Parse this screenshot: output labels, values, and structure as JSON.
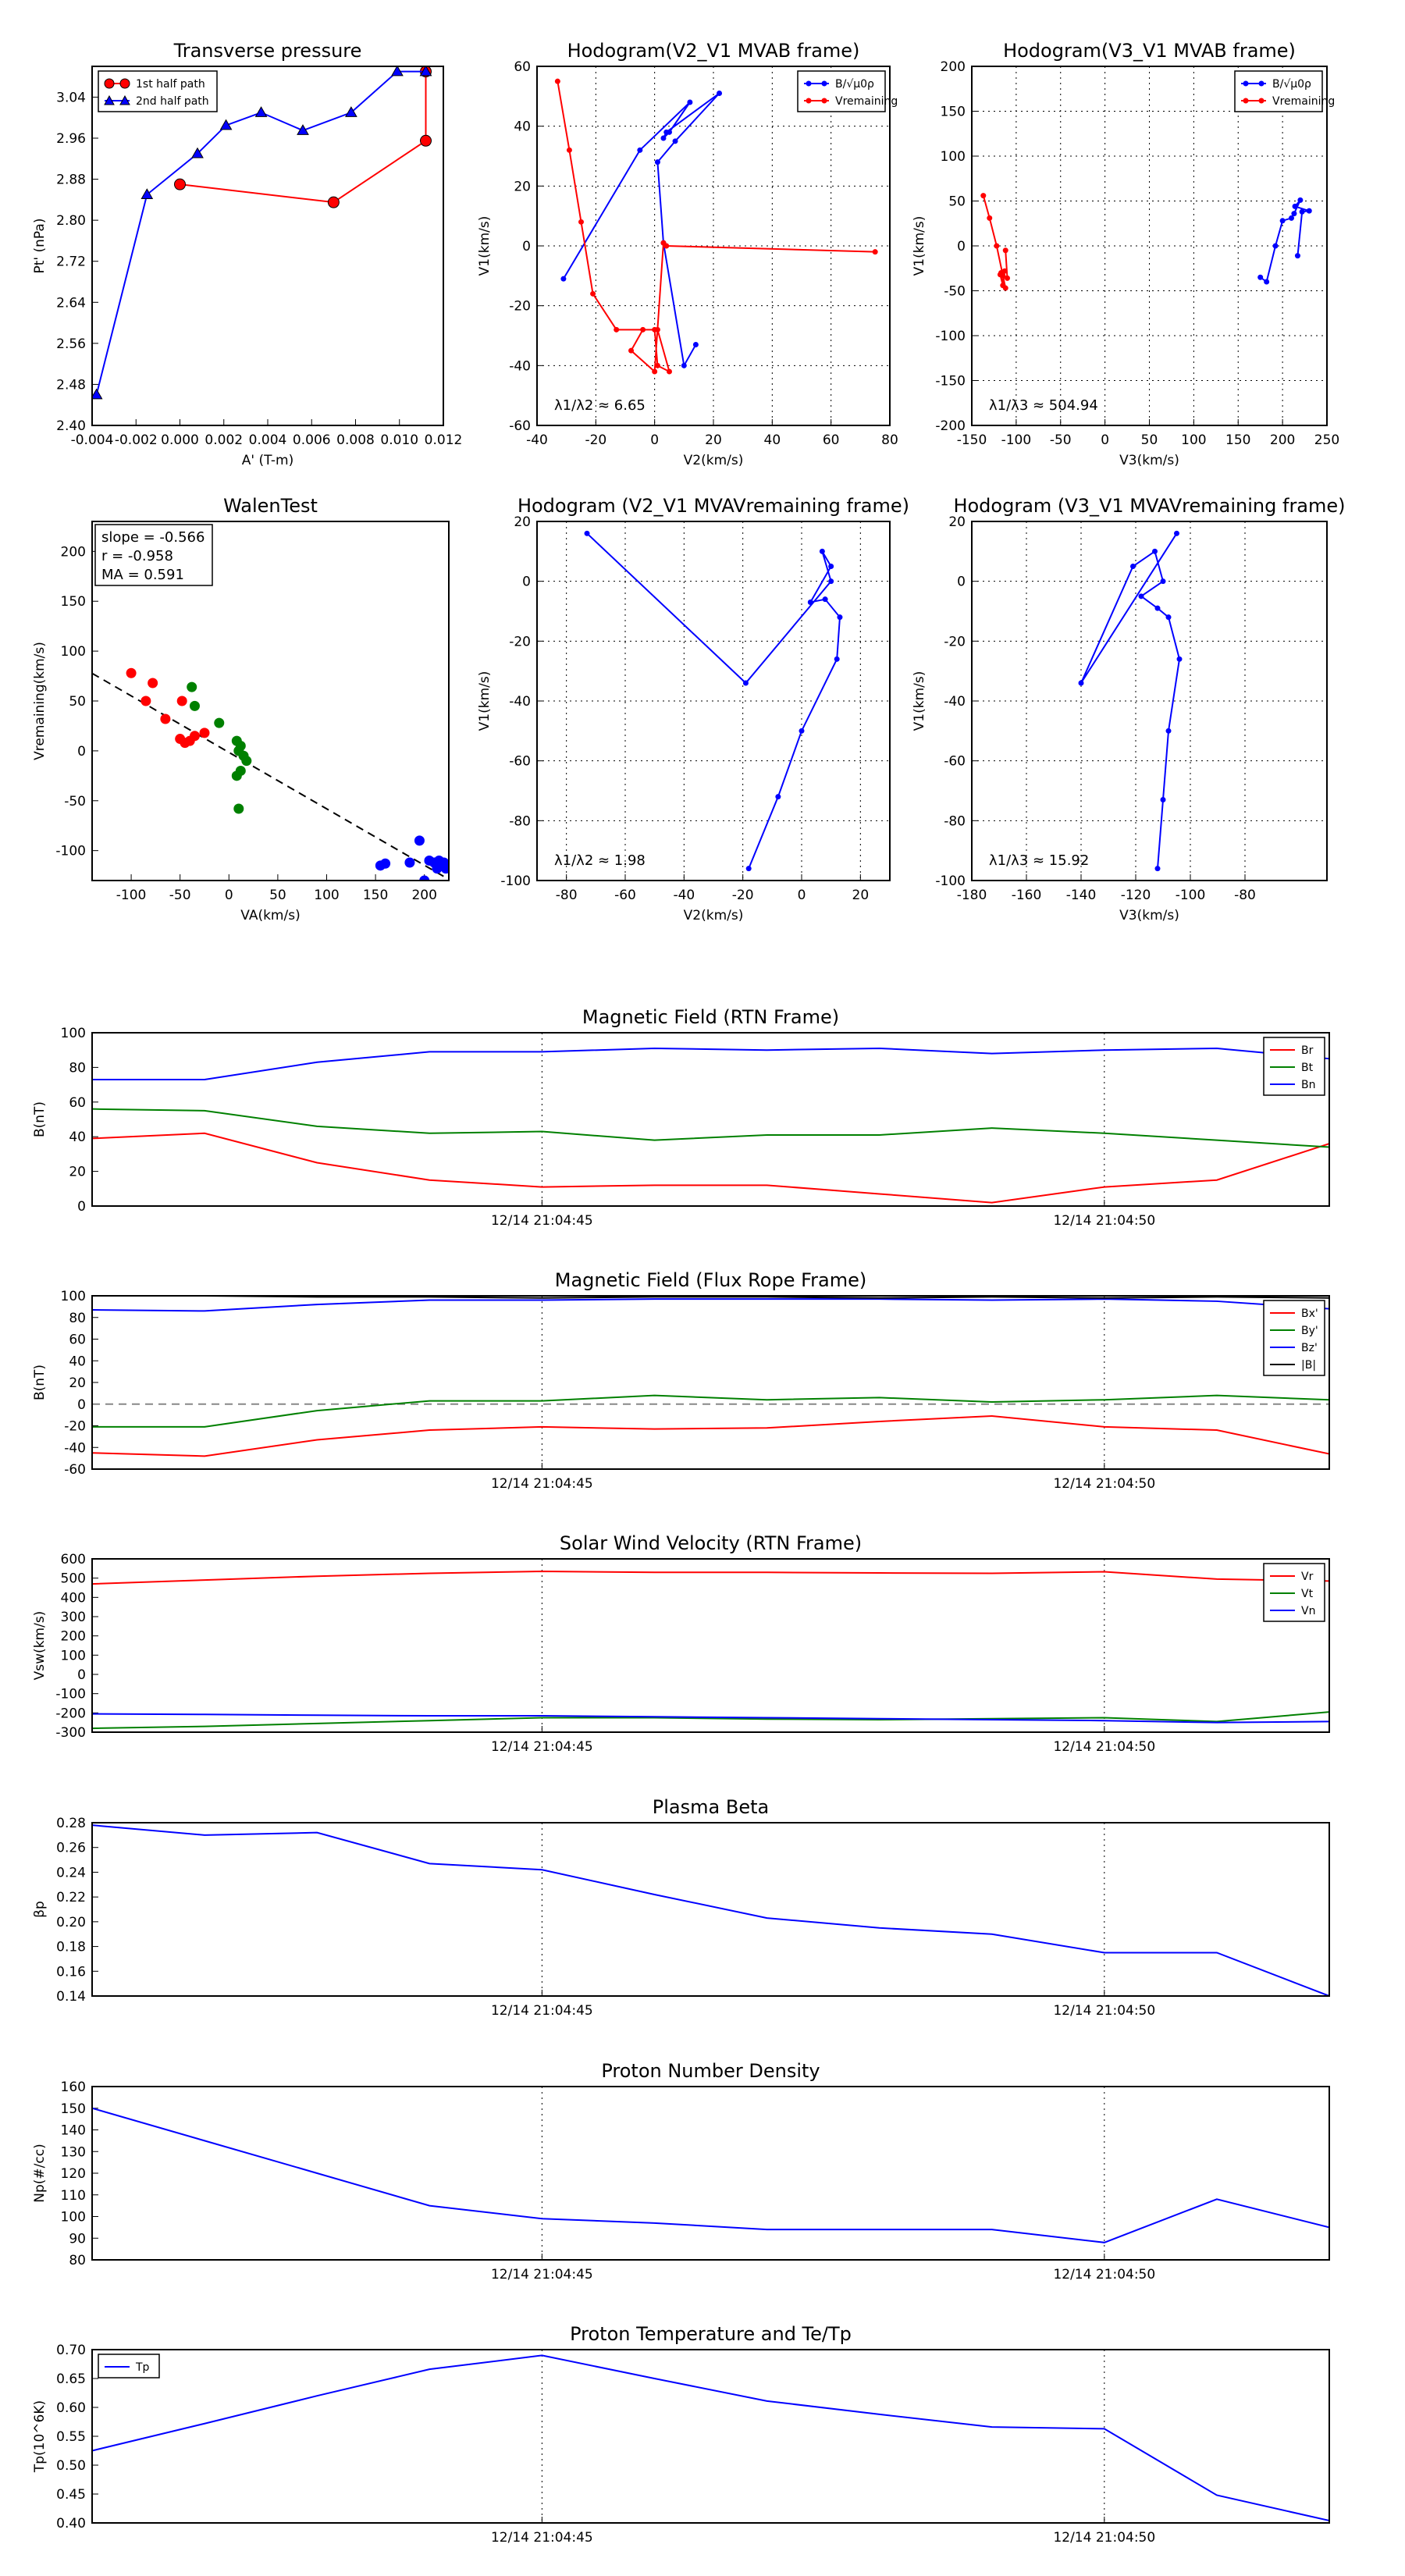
{
  "colors": {
    "red": "#ff0000",
    "blue": "#0000ff",
    "green": "#008000",
    "black": "#000000",
    "grid": "#000000"
  },
  "chart_data": [
    {
      "id": "tp",
      "type": "scatter",
      "title": "Transverse pressure",
      "xlabel": "A' (T-m)",
      "ylabel": "Pt' (nPa)",
      "xlim": [
        -0.004,
        0.012
      ],
      "ylim": [
        2.4,
        3.1
      ],
      "xticks": [
        "-0.004",
        "-0.002",
        "0.000",
        "0.002",
        "0.004",
        "0.006",
        "0.008",
        "0.010",
        "0.012"
      ],
      "yticks": [
        "2.40",
        "2.48",
        "2.56",
        "2.64",
        "2.72",
        "2.80",
        "2.88",
        "2.96",
        "3.04"
      ],
      "legend": "top-left",
      "series": [
        {
          "name": "1st half path",
          "color": "red",
          "marker": "circle",
          "x": [
            0.0,
            0.007,
            0.0112,
            0.0112
          ],
          "y": [
            2.87,
            2.835,
            2.955,
            3.09
          ]
        },
        {
          "name": "2nd half path",
          "color": "blue",
          "marker": "triangle",
          "x": [
            -0.0038,
            -0.0015,
            0.0008,
            0.0021,
            0.0037,
            0.0056,
            0.0078,
            0.0099,
            0.0112
          ],
          "y": [
            2.46,
            2.85,
            2.93,
            2.985,
            3.01,
            2.975,
            3.01,
            3.09,
            3.09
          ]
        }
      ]
    },
    {
      "id": "h1",
      "type": "line",
      "title": "Hodogram(V2_V1 MVAB frame)",
      "xlabel": "V2(km/s)",
      "ylabel": "V1(km/s)",
      "xlim": [
        -40,
        80
      ],
      "ylim": [
        -60,
        60
      ],
      "xticks": [
        "-40",
        "-20",
        "0",
        "20",
        "40",
        "60",
        "80"
      ],
      "yticks": [
        "-60",
        "-40",
        "-20",
        "0",
        "20",
        "40",
        "60"
      ],
      "annotation": "λ1/λ2 ≈ 6.65",
      "legend": "top-right",
      "series": [
        {
          "name": "B/√μ0ρ",
          "color": "blue",
          "x": [
            -31,
            -5,
            12,
            5,
            3,
            4,
            22,
            7,
            1,
            3,
            10,
            14
          ],
          "y": [
            -11,
            32,
            48,
            38,
            36,
            38,
            51,
            35,
            28,
            1,
            -40,
            -33
          ]
        },
        {
          "name": "Vremaining",
          "color": "red",
          "x": [
            -33,
            -29,
            -25,
            -21,
            -13,
            1,
            5,
            1,
            0,
            -4,
            -8,
            0,
            3,
            4,
            75
          ],
          "y": [
            55,
            32,
            8,
            -16,
            -28,
            -28,
            -42,
            -40,
            -28,
            -28,
            -35,
            -42,
            1,
            0,
            -2
          ]
        }
      ]
    },
    {
      "id": "h2",
      "type": "line",
      "title": "Hodogram(V3_V1 MVAB frame)",
      "xlabel": "V3(km/s)",
      "ylabel": "V1(km/s)",
      "xlim": [
        -150,
        250
      ],
      "ylim": [
        -200,
        200
      ],
      "xticks": [
        "-150",
        "-100",
        "-50",
        "0",
        "50",
        "100",
        "150",
        "200",
        "250"
      ],
      "yticks": [
        "-200",
        "-150",
        "-100",
        "-50",
        "0",
        "50",
        "100",
        "150",
        "200"
      ],
      "annotation": "λ1/λ3 ≈ 504.94",
      "legend": "top-right",
      "series": [
        {
          "name": "B/√μ0ρ",
          "color": "blue",
          "x": [
            175,
            182,
            192,
            200,
            210,
            213,
            220,
            214,
            230,
            222,
            217
          ],
          "y": [
            -35,
            -40,
            0,
            28,
            31,
            36,
            51,
            44,
            39,
            38,
            -11
          ]
        },
        {
          "name": "Vremaining",
          "color": "red",
          "x": [
            -137,
            -130,
            -122,
            -115,
            -112,
            -118,
            -115,
            -113,
            -117,
            -110,
            -112
          ],
          "y": [
            56,
            31,
            0,
            -33,
            -47,
            -32,
            -44,
            -28,
            -30,
            -36,
            -5
          ]
        }
      ]
    },
    {
      "id": "wt",
      "type": "scatter",
      "title": "WalenTest",
      "xlabel": "VA(km/s)",
      "ylabel": "Vremaining(km/s)",
      "xlim": [
        -140,
        225
      ],
      "ylim": [
        -130,
        230
      ],
      "xticks": [
        "-100",
        "-50",
        "0",
        "50",
        "100",
        "150",
        "200"
      ],
      "yticks": [
        "-100",
        "-50",
        "0",
        "50",
        "100",
        "150",
        "200"
      ],
      "stats": [
        "slope = -0.566",
        "r = -0.958",
        "MA = 0.591"
      ],
      "fit_slope": -0.566,
      "fit_intercept": -1.5,
      "series": [
        {
          "color": "red",
          "x": [
            -100,
            -85,
            -78,
            -65,
            -50,
            -48,
            -45,
            -40,
            -35,
            -25
          ],
          "y": [
            78,
            50,
            68,
            32,
            12,
            50,
            8,
            10,
            15,
            18
          ]
        },
        {
          "color": "green",
          "x": [
            -10,
            -38,
            -35,
            8,
            10,
            12,
            15,
            18,
            12,
            8,
            10
          ],
          "y": [
            28,
            64,
            45,
            10,
            0,
            5,
            -5,
            -10,
            -20,
            -25,
            -58
          ]
        },
        {
          "color": "blue",
          "x": [
            155,
            160,
            185,
            195,
            205,
            210,
            213,
            215,
            218,
            220,
            222,
            200
          ],
          "y": [
            -115,
            -113,
            -112,
            -90,
            -110,
            -112,
            -118,
            -110,
            -115,
            -112,
            -118,
            -130
          ]
        }
      ]
    },
    {
      "id": "h3",
      "type": "line",
      "title": "Hodogram (V2_V1 MVAVremaining frame)",
      "xlabel": "V2(km/s)",
      "ylabel": "V1(km/s)",
      "xlim": [
        -90,
        30
      ],
      "ylim": [
        -100,
        20
      ],
      "xticks": [
        "-80",
        "-60",
        "-40",
        "-20",
        "0",
        "20"
      ],
      "yticks": [
        "-100",
        "-80",
        "-60",
        "-40",
        "-20",
        "0",
        "20"
      ],
      "annotation": "λ1/λ2 ≈ 1.98",
      "series": [
        {
          "color": "blue",
          "x": [
            -18,
            -8,
            0,
            12,
            13,
            8,
            3,
            10,
            7,
            10,
            -19,
            -73
          ],
          "y": [
            -96,
            -72,
            -50,
            -26,
            -12,
            -6,
            -7,
            5,
            10,
            0,
            -34,
            16
          ]
        }
      ]
    },
    {
      "id": "h4",
      "type": "line",
      "title": "Hodogram (V3_V1 MVAVremaining frame)",
      "xlabel": "V3(km/s)",
      "ylabel": "V1(km/s)",
      "xlim": [
        -180,
        -50
      ],
      "ylim": [
        -100,
        20
      ],
      "xticks": [
        "-180",
        "-160",
        "-140",
        "-120",
        "-100",
        "-80"
      ],
      "yticks": [
        "-100",
        "-80",
        "-60",
        "-40",
        "-20",
        "0",
        "20"
      ],
      "annotation": "λ1/λ3 ≈ 15.92",
      "series": [
        {
          "color": "blue",
          "x": [
            -112,
            -110,
            -108,
            -104,
            -108,
            -112,
            -118,
            -110,
            -113,
            -121,
            -140,
            -105
          ],
          "y": [
            -96,
            -73,
            -50,
            -26,
            -12,
            -9,
            -5,
            0,
            10,
            5,
            -34,
            16
          ]
        }
      ]
    },
    {
      "id": "ts1",
      "type": "line",
      "title": "Magnetic Field (RTN Frame)",
      "ylabel": "B(nT)",
      "ylim": [
        0,
        100
      ],
      "yticks": [
        "0",
        "20",
        "40",
        "60",
        "80",
        "100"
      ],
      "xticks": [
        "12/14 21:04:45",
        "12/14 21:04:50"
      ],
      "xtick_index": [
        4,
        9
      ],
      "n": 12,
      "legend": "top-right",
      "series": [
        {
          "name": "Br",
          "color": "red",
          "values": [
            39,
            42,
            25,
            15,
            11,
            12,
            12,
            7,
            2,
            11,
            15,
            36
          ]
        },
        {
          "name": "Bt",
          "color": "green",
          "values": [
            56,
            55,
            46,
            42,
            43,
            38,
            41,
            41,
            45,
            42,
            38,
            34
          ]
        },
        {
          "name": "Bn",
          "color": "blue",
          "values": [
            73,
            73,
            83,
            89,
            89,
            91,
            90,
            91,
            88,
            90,
            91,
            85
          ]
        }
      ]
    },
    {
      "id": "ts2",
      "type": "line",
      "title": "Magnetic Field (Flux Rope Frame)",
      "ylabel": "B(nT)",
      "ylim": [
        -60,
        100
      ],
      "yticks": [
        "-60",
        "-40",
        "-20",
        "0",
        "20",
        "40",
        "60",
        "80",
        "100"
      ],
      "xticks": [
        "12/14 21:04:45",
        "12/14 21:04:50"
      ],
      "xtick_index": [
        4,
        9
      ],
      "n": 12,
      "legend": "top-right",
      "zero_line": true,
      "series": [
        {
          "name": "Bx'",
          "color": "red",
          "values": [
            -45,
            -48,
            -33,
            -24,
            -21,
            -23,
            -22,
            -16,
            -11,
            -21,
            -24,
            -46
          ]
        },
        {
          "name": "By'",
          "color": "green",
          "values": [
            -21,
            -21,
            -6,
            3,
            3,
            8,
            4,
            6,
            2,
            4,
            8,
            4
          ]
        },
        {
          "name": "Bz'",
          "color": "blue",
          "values": [
            87,
            86,
            92,
            96,
            96,
            97,
            97,
            97,
            96,
            97,
            95,
            88
          ]
        },
        {
          "name": "|B|",
          "color": "black",
          "values": [
            100,
            100,
            99,
            99,
            98,
            99,
            99,
            98,
            99,
            98,
            99,
            98
          ]
        }
      ]
    },
    {
      "id": "ts3",
      "type": "line",
      "title": "Solar Wind Velocity (RTN Frame)",
      "ylabel": "Vsw(km/s)",
      "ylim": [
        -300,
        600
      ],
      "yticks": [
        "-300",
        "-200",
        "-100",
        "0",
        "100",
        "200",
        "300",
        "400",
        "500",
        "600"
      ],
      "xticks": [
        "12/14 21:04:45",
        "12/14 21:04:50"
      ],
      "xtick_index": [
        4,
        9
      ],
      "n": 12,
      "legend": "top-right",
      "series": [
        {
          "name": "Vr",
          "color": "red",
          "values": [
            470,
            490,
            510,
            525,
            535,
            530,
            530,
            527,
            525,
            533,
            495,
            485
          ]
        },
        {
          "name": "Vt",
          "color": "green",
          "values": [
            -280,
            -270,
            -255,
            -240,
            -225,
            -225,
            -232,
            -235,
            -230,
            -225,
            -245,
            -195
          ]
        },
        {
          "name": "Vn",
          "color": "blue",
          "values": [
            -205,
            -208,
            -212,
            -215,
            -215,
            -220,
            -225,
            -230,
            -235,
            -240,
            -250,
            -245
          ]
        }
      ]
    },
    {
      "id": "ts4",
      "type": "line",
      "title": "Plasma Beta",
      "ylabel": "βp",
      "ylim": [
        0.14,
        0.28
      ],
      "yticks": [
        "0.14",
        "0.16",
        "0.18",
        "0.20",
        "0.22",
        "0.24",
        "0.26",
        "0.28"
      ],
      "xticks": [
        "12/14 21:04:45",
        "12/14 21:04:50"
      ],
      "xtick_index": [
        4,
        9
      ],
      "n": 12,
      "series": [
        {
          "color": "blue",
          "values": [
            0.278,
            0.27,
            0.272,
            0.247,
            0.242,
            0.222,
            0.203,
            0.195,
            0.19,
            0.175,
            0.175,
            0.14
          ]
        }
      ]
    },
    {
      "id": "ts5",
      "type": "line",
      "title": "Proton Number Density",
      "ylabel": "Np(#/cc)",
      "ylim": [
        80,
        160
      ],
      "yticks": [
        "80",
        "90",
        "100",
        "110",
        "120",
        "130",
        "140",
        "150",
        "160"
      ],
      "xticks": [
        "12/14 21:04:45",
        "12/14 21:04:50"
      ],
      "xtick_index": [
        4,
        9
      ],
      "n": 12,
      "series": [
        {
          "color": "blue",
          "values": [
            150,
            135,
            120,
            105,
            99,
            97,
            94,
            94,
            94,
            88,
            108,
            95
          ]
        }
      ]
    },
    {
      "id": "ts6",
      "type": "line",
      "title": "Proton Temperature and Te/Tp",
      "ylabel": "Tp(10^6K)",
      "ylim": [
        0.4,
        0.7
      ],
      "yticks": [
        "0.40",
        "0.45",
        "0.50",
        "0.55",
        "0.60",
        "0.65",
        "0.70"
      ],
      "xticks": [
        "12/14 21:04:45",
        "12/14 21:04:50"
      ],
      "xtick_index": [
        4,
        9
      ],
      "n": 12,
      "legend": "top-left",
      "series": [
        {
          "name": "Tp",
          "color": "blue",
          "values": [
            0.525,
            0.572,
            0.62,
            0.666,
            0.69,
            0.65,
            0.611,
            0.588,
            0.566,
            0.563,
            0.448,
            0.404
          ]
        }
      ]
    }
  ]
}
